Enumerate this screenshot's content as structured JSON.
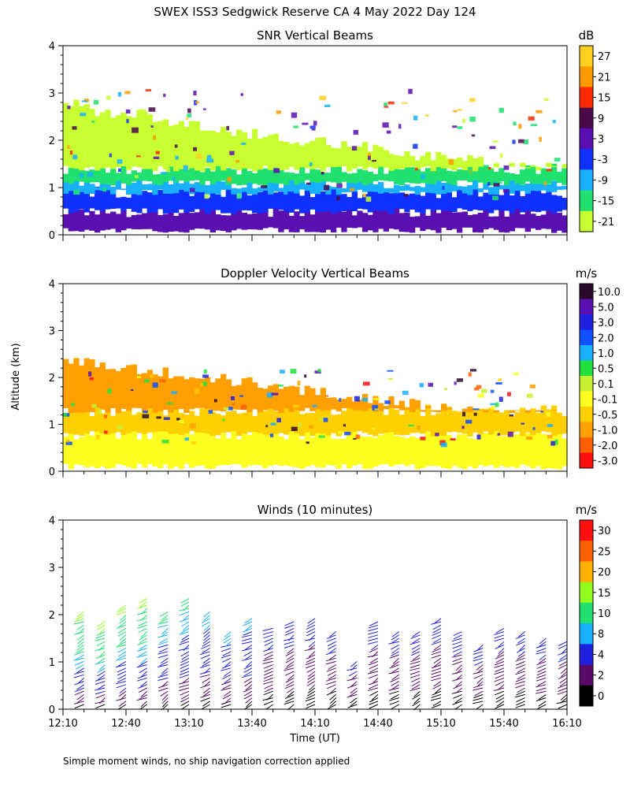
{
  "figure": {
    "title": "SWEX ISS3 Sedgwick Reserve CA   4 May 2022 Day 124",
    "ylabel": "Altitude (km)",
    "xlabel": "Time (UT)",
    "footnote": "Simple moment winds, no ship navigation correction applied"
  },
  "chart_data": [
    {
      "type": "heatmap",
      "title": "SNR Vertical Beams",
      "ylabel": "Altitude (km)",
      "x_ticks": [
        "12:10",
        "12:40",
        "13:10",
        "13:40",
        "14:10",
        "14:40",
        "15:10",
        "15:40",
        "16:10"
      ],
      "y_ticks": [
        "0",
        "1",
        "2",
        "3",
        "4"
      ],
      "xlim": [
        "12:10",
        "16:10"
      ],
      "ylim": [
        0,
        4
      ],
      "colorbar": {
        "unit": "dB",
        "labels": [
          "27",
          "21",
          "15",
          "9",
          "3",
          "-3",
          "-9",
          "-15",
          "-21"
        ],
        "colors": [
          "#ffd020",
          "#ff9a00",
          "#ff2a00",
          "#4a0a4a",
          "#5a10b0",
          "#1030ff",
          "#18b0ff",
          "#20e070",
          "#c8ff30"
        ]
      },
      "profile_top_km": [
        2.8,
        2.7,
        2.6,
        2.6,
        2.5,
        2.4,
        2.3,
        2.3,
        2.2,
        2.2,
        2.1,
        2.1,
        2.0,
        2.0,
        1.9,
        1.9,
        1.8,
        1.8,
        1.7,
        1.7,
        1.6,
        1.6,
        1.5,
        1.5,
        1.5,
        1.4,
        1.4
      ],
      "layers": [
        {
          "label": "3",
          "bottom_km": 0.1,
          "top_km": 0.5
        },
        {
          "label": "-3",
          "bottom_km": 0.5,
          "top_km": 0.9
        },
        {
          "label": "-9",
          "bottom_km": 0.9,
          "top_km": 1.1
        },
        {
          "label": "-15",
          "bottom_km": 1.1,
          "top_km": 1.4
        },
        {
          "label": "-21",
          "bottom_km": 1.4,
          "top_km": 2.1
        }
      ]
    },
    {
      "type": "heatmap",
      "title": "Doppler Velocity Vertical Beams",
      "ylabel": "Altitude (km)",
      "x_ticks": [
        "12:10",
        "12:40",
        "13:10",
        "13:40",
        "14:10",
        "14:40",
        "15:10",
        "15:40",
        "16:10"
      ],
      "y_ticks": [
        "0",
        "1",
        "2",
        "3",
        "4"
      ],
      "xlim": [
        "12:10",
        "16:10"
      ],
      "ylim": [
        0,
        4
      ],
      "colorbar": {
        "unit": "m/s",
        "labels": [
          "10.0",
          "5.0",
          "3.0",
          "2.0",
          "1.0",
          "0.5",
          "0.1",
          "-0.1",
          "-0.5",
          "-1.0",
          "-2.0",
          "-3.0"
        ],
        "colors": [
          "#2a0a2a",
          "#5a10b0",
          "#2020e0",
          "#1050ff",
          "#18b0ff",
          "#20e040",
          "#c8f030",
          "#ffff20",
          "#ffd000",
          "#ffa000",
          "#ff6000",
          "#ff1010"
        ]
      },
      "layers": [
        {
          "label": "-0.1",
          "bottom_km": 0.1,
          "top_km": 0.8
        },
        {
          "label": "-0.5",
          "bottom_km": 0.8,
          "top_km": 1.3
        },
        {
          "label": "-1.0",
          "bottom_km": 1.3,
          "top_km": 2.4
        }
      ]
    },
    {
      "type": "scatter",
      "title": "Winds (10 minutes)",
      "ylabel": "Altitude (km)",
      "x_ticks": [
        "12:10",
        "12:40",
        "13:10",
        "13:40",
        "14:10",
        "14:40",
        "15:10",
        "15:40",
        "16:10"
      ],
      "y_ticks": [
        "0",
        "1",
        "2",
        "3",
        "4"
      ],
      "xlim": [
        "12:10",
        "16:10"
      ],
      "ylim": [
        0,
        4
      ],
      "colorbar": {
        "unit": "m/s",
        "labels": [
          "30",
          "25",
          "20",
          "15",
          "10",
          "8",
          "4",
          "2",
          "0"
        ],
        "colors": [
          "#ff1010",
          "#ff6000",
          "#ffb000",
          "#90ff20",
          "#20e070",
          "#18b0ff",
          "#2020e0",
          "#5a0a6a",
          "#000000"
        ]
      },
      "profiles": [
        {
          "time": "12:20",
          "top_km": 2.0,
          "top_speed": 15
        },
        {
          "time": "12:30",
          "top_km": 1.8,
          "top_speed": 15
        },
        {
          "time": "12:40",
          "top_km": 2.2,
          "top_speed": 15
        },
        {
          "time": "12:50",
          "top_km": 2.3,
          "top_speed": 15
        },
        {
          "time": "13:00",
          "top_km": 2.0,
          "top_speed": 10
        },
        {
          "time": "13:10",
          "top_km": 2.3,
          "top_speed": 10
        },
        {
          "time": "13:20",
          "top_km": 2.0,
          "top_speed": 8
        },
        {
          "time": "13:30",
          "top_km": 1.6,
          "top_speed": 8
        },
        {
          "time": "13:40",
          "top_km": 1.9,
          "top_speed": 8
        },
        {
          "time": "13:50",
          "top_km": 1.7,
          "top_speed": 4
        },
        {
          "time": "14:00",
          "top_km": 1.8,
          "top_speed": 4
        },
        {
          "time": "14:10",
          "top_km": 1.9,
          "top_speed": 4
        },
        {
          "time": "14:20",
          "top_km": 1.6,
          "top_speed": 4
        },
        {
          "time": "14:30",
          "top_km": 1.0,
          "top_speed": 4
        },
        {
          "time": "14:40",
          "top_km": 1.8,
          "top_speed": 4
        },
        {
          "time": "14:50",
          "top_km": 1.6,
          "top_speed": 4
        },
        {
          "time": "15:00",
          "top_km": 1.6,
          "top_speed": 4
        },
        {
          "time": "15:10",
          "top_km": 1.9,
          "top_speed": 4
        },
        {
          "time": "15:20",
          "top_km": 1.6,
          "top_speed": 4
        },
        {
          "time": "15:30",
          "top_km": 1.3,
          "top_speed": 4
        },
        {
          "time": "15:40",
          "top_km": 1.7,
          "top_speed": 4
        },
        {
          "time": "15:50",
          "top_km": 1.6,
          "top_speed": 4
        },
        {
          "time": "16:00",
          "top_km": 1.5,
          "top_speed": 4
        },
        {
          "time": "16:10",
          "top_km": 1.4,
          "top_speed": 4
        }
      ]
    }
  ]
}
